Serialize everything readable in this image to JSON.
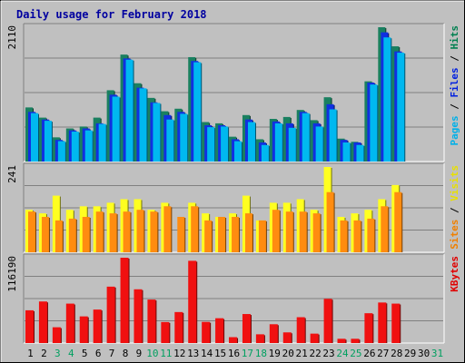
{
  "chart_data": {
    "type": "bar",
    "title": "Daily usage for February 2018",
    "x": [
      "1",
      "2",
      "3",
      "4",
      "5",
      "6",
      "7",
      "8",
      "9",
      "10",
      "11",
      "12",
      "13",
      "14",
      "15",
      "16",
      "17",
      "18",
      "19",
      "20",
      "21",
      "22",
      "23",
      "24",
      "25",
      "26",
      "27",
      "28",
      "29",
      "30",
      "31"
    ],
    "weekend_days": [
      "3",
      "4",
      "10",
      "11",
      "17",
      "18",
      "24",
      "25",
      "31"
    ],
    "panels": [
      {
        "id": "top",
        "ymax_label": "2110",
        "ymax": 2110,
        "side_labels": [
          {
            "text": "Pages",
            "color": "#00b0e8"
          },
          {
            "text": " / ",
            "color": "#000000"
          },
          {
            "text": "Files",
            "color": "#0020e0"
          },
          {
            "text": " / ",
            "color": "#000000"
          },
          {
            "text": "Hits",
            "color": "#008050"
          }
        ],
        "series": [
          {
            "name": "Hits",
            "color": "#1a8060",
            "values": [
              850,
              690,
              380,
              520,
              550,
              690,
              1120,
              1680,
              1230,
              1000,
              790,
              830,
              1640,
              620,
              600,
              390,
              730,
              350,
              670,
              700,
              810,
              650,
              1010,
              360,
              310,
              1260,
              2110,
              1810,
              null,
              null,
              null
            ]
          },
          {
            "name": "Files",
            "color": "#1030e0",
            "values": [
              780,
              660,
              340,
              490,
              520,
              600,
              1050,
              1620,
              1160,
              930,
              730,
              780,
              1580,
              570,
              570,
              350,
              660,
              300,
              630,
              600,
              780,
              600,
              900,
              340,
              300,
              1240,
              2030,
              1730,
              null,
              null,
              null
            ]
          },
          {
            "name": "Pages",
            "color": "#00b8f0",
            "values": [
              760,
              640,
              320,
              470,
              490,
              590,
              1020,
              1600,
              1150,
              920,
              660,
              750,
              1560,
              540,
              550,
              320,
              620,
              260,
              600,
              530,
              760,
              550,
              820,
              300,
              260,
              1210,
              1950,
              1710,
              null,
              null,
              null
            ]
          }
        ]
      },
      {
        "id": "mid",
        "ymax_label": "241",
        "ymax": 241,
        "side_labels": [
          {
            "text": "Sites",
            "color": "#f08000"
          },
          {
            "text": " / ",
            "color": "#000000"
          },
          {
            "text": "Visits",
            "color": "#e8e000"
          }
        ],
        "series": [
          {
            "name": "Visits",
            "color": "#ffff20",
            "values": [
              120,
              110,
              160,
              120,
              130,
              130,
              140,
              150,
              150,
              120,
              140,
              0,
              140,
              110,
              100,
              110,
              160,
              90,
              140,
              140,
              150,
              120,
              241,
              100,
              110,
              120,
              150,
              190,
              null,
              null,
              null
            ]
          },
          {
            "name": "Sites",
            "color": "#ff8c10",
            "values": [
              115,
              100,
              90,
              95,
              100,
              115,
              110,
              115,
              120,
              115,
              130,
              100,
              130,
              90,
              100,
              100,
              110,
              90,
              120,
              115,
              115,
              110,
              170,
              90,
              90,
              95,
              130,
              170,
              null,
              null,
              null
            ]
          }
        ]
      },
      {
        "id": "bottom",
        "ymax_label": "116190",
        "ymax": 116190,
        "side_labels": [
          {
            "text": "KBytes",
            "color": "#e00000"
          }
        ],
        "series": [
          {
            "name": "KBytes",
            "color": "#f01010",
            "values": [
              44600,
              56600,
              21500,
              53700,
              36300,
              45600,
              76800,
              116190,
              73200,
              59200,
              28600,
              42200,
              112000,
              28800,
              33800,
              8000,
              39500,
              11900,
              25600,
              14500,
              35200,
              12800,
              60200,
              5800,
              5800,
              40600,
              55200,
              53700,
              null,
              null,
              null
            ]
          }
        ]
      }
    ]
  }
}
